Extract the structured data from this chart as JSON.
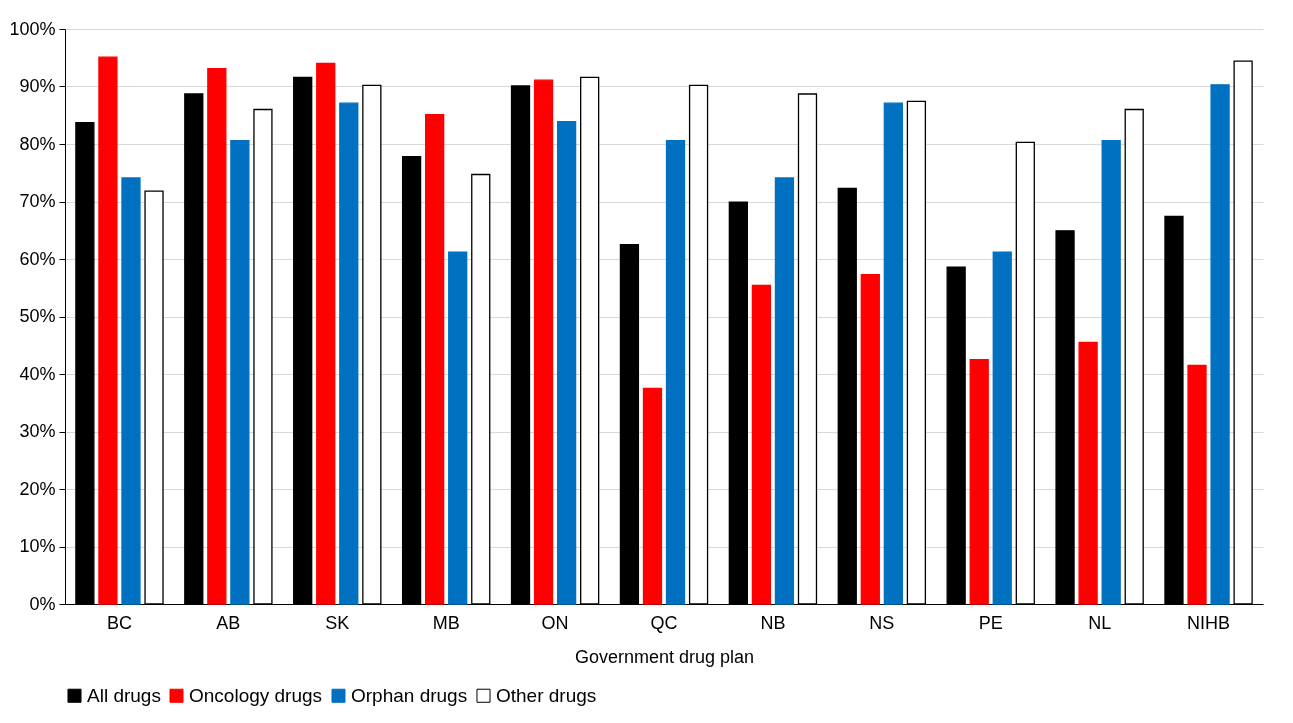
{
  "chart_data": {
    "type": "bar",
    "xlabel": "Government drug plan",
    "categories": [
      "BC",
      "AB",
      "SK",
      "MB",
      "ON",
      "QC",
      "NB",
      "NS",
      "PE",
      "NL",
      "NIHB"
    ],
    "series": [
      {
        "name": "All drugs",
        "color": "#000000",
        "values": [
          83.7,
          88.7,
          91.6,
          77.8,
          90.1,
          62.5,
          69.9,
          72.3,
          58.6,
          64.9,
          67.4
        ]
      },
      {
        "name": "Oncology drugs",
        "color": "#ff0000",
        "values": [
          95.1,
          93.1,
          94.0,
          85.1,
          91.1,
          37.5,
          55.4,
          57.3,
          42.5,
          45.5,
          41.5
        ]
      },
      {
        "name": "Orphan drugs",
        "color": "#0070c0",
        "values": [
          74.1,
          80.6,
          87.1,
          61.2,
          83.9,
          80.6,
          74.1,
          87.1,
          61.2,
          80.6,
          90.3
        ]
      },
      {
        "name": "Other drugs",
        "color": "#ffffff",
        "values": [
          71.8,
          86.0,
          90.2,
          74.7,
          91.6,
          90.2,
          88.7,
          87.4,
          80.3,
          86.0,
          94.4
        ]
      }
    ],
    "ylim": [
      0,
      100
    ],
    "yticks": [
      {
        "value": 0,
        "label": "0%"
      },
      {
        "value": 10,
        "label": "10%"
      },
      {
        "value": 20,
        "label": "20%"
      },
      {
        "value": 30,
        "label": "30%"
      },
      {
        "value": 40,
        "label": "40%"
      },
      {
        "value": 50,
        "label": "50%"
      },
      {
        "value": 60,
        "label": "60%"
      },
      {
        "value": 70,
        "label": "70%"
      },
      {
        "value": 80,
        "label": "80%"
      },
      {
        "value": 90,
        "label": "90%"
      },
      {
        "value": 100,
        "label": "100%"
      }
    ],
    "grid": "y",
    "legend": "bottom"
  }
}
